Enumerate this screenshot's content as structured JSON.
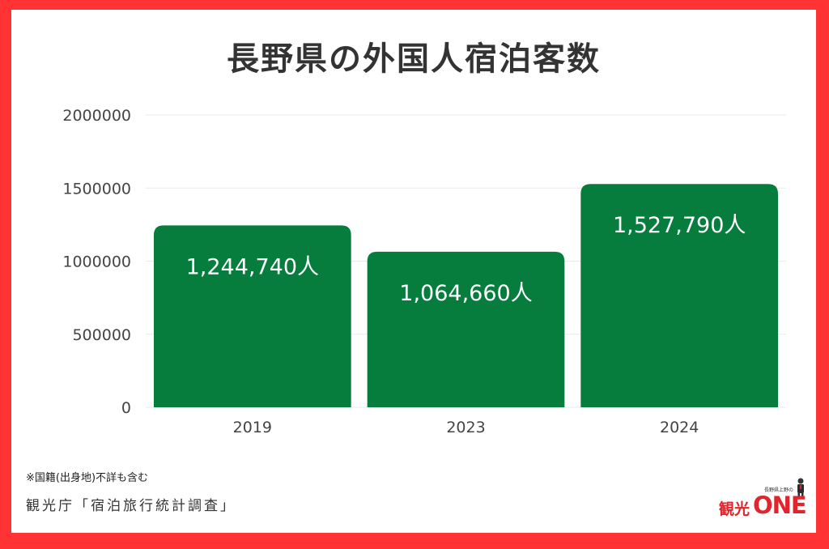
{
  "chart_data": {
    "type": "bar",
    "title": "長野県の外国人宿泊客数",
    "categories": [
      "2019",
      "2023",
      "2024"
    ],
    "values": [
      1244740,
      1064660,
      1527790
    ],
    "data_labels": [
      "1,244,740人",
      "1,064,660人",
      "1,527,790人"
    ],
    "y_ticks": [
      "0",
      "500000",
      "1000000",
      "1500000",
      "2000000"
    ],
    "ylim": [
      0,
      2000000
    ],
    "grid": true,
    "bar_color": "#067d3d",
    "xlabel": "",
    "ylabel": ""
  },
  "footnote": "※国籍(出身地)不詳も含む",
  "source": "観光庁「宿泊旅行統計調査」",
  "logo": {
    "top_text": "長野県上野の",
    "kanji": "観光",
    "word": "ONE",
    "color": "#e0252c"
  },
  "frame_color": "#ff3333"
}
